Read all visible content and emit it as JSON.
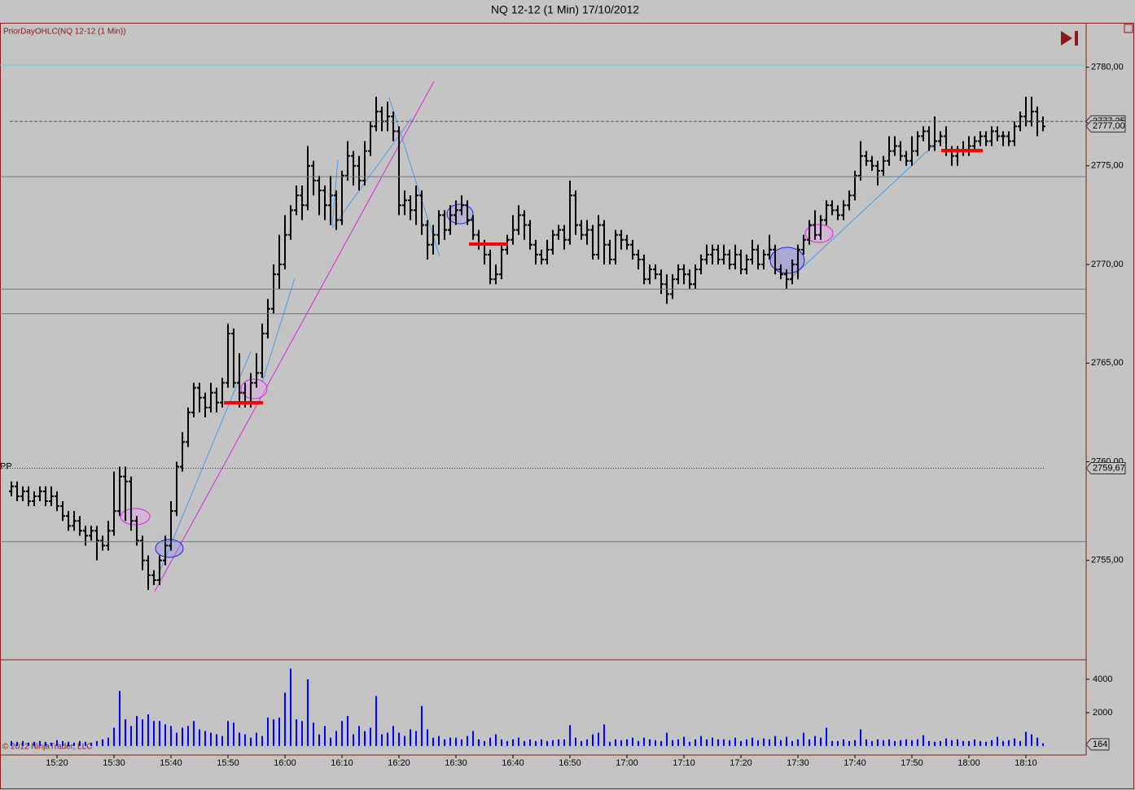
{
  "chart_data": {
    "type": "ohlc",
    "title": "NQ 12-12 (1 Min)  17/10/2012",
    "subtitle": "PriorDayOHLC(NQ 12-12 (1 Min))",
    "footer": "© 2012 NinjaTrader, LLC",
    "color": "#000000",
    "categories": [
      null,
      null,
      null,
      null,
      null,
      null,
      null,
      null,
      "15:20",
      null,
      null,
      null,
      null,
      null,
      null,
      null,
      null,
      null,
      "15:30",
      null,
      null,
      null,
      null,
      null,
      null,
      null,
      null,
      null,
      "15:40",
      null,
      null,
      null,
      null,
      null,
      null,
      null,
      null,
      null,
      "15:50",
      null,
      null,
      null,
      null,
      null,
      null,
      null,
      null,
      null,
      "16:00",
      null,
      null,
      null,
      null,
      null,
      null,
      null,
      null,
      null,
      "16:10",
      null,
      null,
      null,
      null,
      null,
      null,
      null,
      null,
      null,
      "16:20",
      null,
      null,
      null,
      null,
      null,
      null,
      null,
      null,
      null,
      "16:30",
      null,
      null,
      null,
      null,
      null,
      null,
      null,
      null,
      null,
      "16:40",
      null,
      null,
      null,
      null,
      null,
      null,
      null,
      null,
      null,
      "16:50",
      null,
      null,
      null,
      null,
      null,
      null,
      null,
      null,
      null,
      "17:00",
      null,
      null,
      null,
      null,
      null,
      null,
      null,
      null,
      null,
      "17:10",
      null,
      null,
      null,
      null,
      null,
      null,
      null,
      null,
      null,
      "17:20",
      null,
      null,
      null,
      null,
      null,
      null,
      null,
      null,
      null,
      "17:30",
      null,
      null,
      null,
      null,
      null,
      null,
      null,
      null,
      null,
      "17:40",
      null,
      null,
      null,
      null,
      null,
      null,
      null,
      null,
      null,
      "17:50",
      null,
      null,
      null,
      null,
      null,
      null,
      null,
      null,
      null,
      "18:00",
      null,
      null,
      null,
      null,
      null,
      null,
      null,
      null,
      null,
      "18:10",
      null,
      null,
      null
    ],
    "open": [
      2758.5,
      2758.75,
      2758.25,
      2758.5,
      2758.0,
      2758.25,
      2758.5,
      2758.0,
      2758.25,
      2757.75,
      2757.25,
      2756.75,
      2757.0,
      2756.5,
      2756.25,
      2756.5,
      2756.0,
      2755.75,
      2756.5,
      2757.5,
      2759.25,
      2759.0,
      2757.0,
      2756.0,
      2755.0,
      2754.25,
      2754.0,
      2755.0,
      2755.75,
      2757.5,
      2759.75,
      2761.0,
      2762.5,
      2763.75,
      2763.25,
      2762.75,
      2763.5,
      2763.0,
      2764.0,
      2766.5,
      2764.0,
      2763.5,
      2763.0,
      2764.0,
      2764.5,
      2766.5,
      2767.75,
      2769.5,
      2770.0,
      2771.5,
      2772.75,
      2773.5,
      2773.0,
      2775.0,
      2774.25,
      2773.75,
      2773.0,
      2773.5,
      2772.25,
      2774.5,
      2775.5,
      2775.0,
      2774.25,
      2775.75,
      2777.0,
      2777.75,
      2777.25,
      2777.5,
      2776.75,
      2773.0,
      2773.25,
      2772.75,
      2773.5,
      2772.0,
      2771.0,
      2771.5,
      2772.5,
      2771.75,
      2772.5,
      2772.75,
      2773.0,
      2772.25,
      2771.5,
      2771.0,
      2770.5,
      2769.25,
      2769.5,
      2770.75,
      2771.25,
      2771.75,
      2772.5,
      2772.0,
      2771.0,
      2770.5,
      2770.25,
      2770.75,
      2771.5,
      2771.75,
      2771.25,
      2773.5,
      2772.0,
      2771.5,
      2771.75,
      2770.5,
      2772.0,
      2771.0,
      2770.25,
      2771.5,
      2771.25,
      2771.0,
      2770.5,
      2770.25,
      2769.25,
      2769.75,
      2769.5,
      2769.0,
      2768.5,
      2769.25,
      2769.75,
      2769.5,
      2769.0,
      2769.75,
      2770.25,
      2770.5,
      2770.75,
      2770.25,
      2770.5,
      2770.0,
      2770.5,
      2769.75,
      2770.25,
      2770.75,
      2770.0,
      2770.5,
      2770.75,
      2769.75,
      2769.5,
      2769.25,
      2770.0,
      2770.75,
      2771.25,
      2772.0,
      2771.5,
      2772.25,
      2773.0,
      2772.75,
      2772.5,
      2773.0,
      2773.5,
      2774.5,
      2775.5,
      2775.25,
      2775.0,
      2774.75,
      2775.25,
      2775.75,
      2776.0,
      2775.5,
      2775.25,
      2775.75,
      2776.5,
      2776.75,
      2776.0,
      2776.25,
      2776.5,
      2775.75,
      2775.5,
      2775.75,
      2775.75,
      2776.0,
      2776.25,
      2776.5,
      2776.25,
      2776.75,
      2776.5,
      2776.5,
      2776.25,
      2777.0,
      2777.5,
      2777.25,
      2777.75,
      2777.25
    ],
    "high": [
      2759.0,
      2759.0,
      2758.75,
      2758.75,
      2758.5,
      2758.75,
      2758.75,
      2758.75,
      2758.5,
      2758.0,
      2757.5,
      2757.5,
      2757.25,
      2756.75,
      2756.75,
      2756.75,
      2756.25,
      2757.0,
      2759.5,
      2759.75,
      2759.75,
      2759.25,
      2757.25,
      2756.25,
      2755.25,
      2754.5,
      2755.25,
      2756.25,
      2758.0,
      2760.0,
      2761.5,
      2762.75,
      2764.0,
      2764.0,
      2763.5,
      2764.0,
      2763.75,
      2764.25,
      2767.0,
      2766.75,
      2765.5,
      2764.0,
      2764.5,
      2765.5,
      2767.0,
      2768.25,
      2770.0,
      2771.5,
      2772.5,
      2773.0,
      2774.0,
      2774.0,
      2776.0,
      2775.25,
      2774.5,
      2774.0,
      2774.5,
      2773.75,
      2774.75,
      2776.25,
      2775.75,
      2775.5,
      2776.25,
      2777.25,
      2778.5,
      2778.0,
      2778.25,
      2777.75,
      2777.0,
      2773.75,
      2773.5,
      2774.0,
      2773.75,
      2772.25,
      2772.0,
      2772.75,
      2772.75,
      2773.0,
      2773.25,
      2773.5,
      2773.25,
      2772.5,
      2771.75,
      2771.25,
      2770.75,
      2770.0,
      2771.0,
      2771.5,
      2772.5,
      2773.0,
      2772.75,
      2772.25,
      2771.25,
      2770.75,
      2771.25,
      2771.75,
      2772.0,
      2772.0,
      2774.25,
      2773.75,
      2772.25,
      2772.25,
      2772.0,
      2772.5,
      2772.25,
      2771.25,
      2771.75,
      2771.75,
      2771.5,
      2771.25,
      2770.75,
      2770.5,
      2770.0,
      2770.0,
      2769.75,
      2769.5,
      2769.5,
      2770.0,
      2770.0,
      2769.75,
      2770.0,
      2770.5,
      2771.0,
      2771.0,
      2771.0,
      2771.0,
      2770.75,
      2771.0,
      2770.75,
      2770.5,
      2771.25,
      2771.0,
      2770.75,
      2771.5,
      2771.0,
      2770.0,
      2769.75,
      2770.25,
      2771.0,
      2771.5,
      2772.25,
      2772.75,
      2772.5,
      2773.25,
      2773.25,
      2773.0,
      2773.25,
      2773.75,
      2774.75,
      2776.25,
      2775.75,
      2775.5,
      2775.25,
      2775.5,
      2776.5,
      2776.5,
      2776.25,
      2775.75,
      2776.5,
      2776.75,
      2777.0,
      2777.0,
      2777.5,
      2776.75,
      2777.0,
      2776.0,
      2776.0,
      2776.25,
      2776.5,
      2776.5,
      2776.75,
      2776.75,
      2777.0,
      2777.0,
      2776.75,
      2776.75,
      2777.25,
      2777.75,
      2778.5,
      2778.5,
      2778.0,
      2777.5
    ],
    "low": [
      2758.25,
      2758.0,
      2758.0,
      2757.75,
      2757.75,
      2758.0,
      2757.75,
      2757.75,
      2757.5,
      2757.0,
      2756.5,
      2756.5,
      2756.25,
      2755.75,
      2756.0,
      2755.0,
      2755.5,
      2755.5,
      2756.25,
      2757.25,
      2757.0,
      2756.5,
      2755.75,
      2754.5,
      2753.5,
      2753.75,
      2753.75,
      2754.75,
      2755.5,
      2757.25,
      2759.5,
      2760.75,
      2762.25,
      2762.5,
      2762.25,
      2762.5,
      2762.5,
      2762.75,
      2763.75,
      2763.75,
      2762.75,
      2762.75,
      2762.75,
      2763.75,
      2764.25,
      2766.25,
      2767.5,
      2768.75,
      2769.75,
      2771.25,
      2772.5,
      2772.25,
      2772.75,
      2773.5,
      2772.5,
      2772.25,
      2772.0,
      2771.75,
      2772.0,
      2774.25,
      2774.0,
      2773.75,
      2774.0,
      2775.5,
      2776.75,
      2776.75,
      2776.75,
      2776.25,
      2772.5,
      2772.5,
      2772.25,
      2772.0,
      2771.5,
      2770.25,
      2770.5,
      2771.0,
      2771.25,
      2771.5,
      2772.0,
      2772.5,
      2772.0,
      2771.25,
      2770.75,
      2770.0,
      2769.0,
      2769.0,
      2769.25,
      2770.5,
      2771.0,
      2771.5,
      2771.25,
      2770.75,
      2770.0,
      2770.0,
      2770.0,
      2770.5,
      2771.25,
      2770.75,
      2771.0,
      2771.5,
      2771.25,
      2771.0,
      2770.25,
      2770.25,
      2770.0,
      2770.0,
      2770.0,
      2770.75,
      2770.75,
      2770.25,
      2769.75,
      2769.0,
      2769.0,
      2769.25,
      2768.5,
      2768.0,
      2768.25,
      2769.0,
      2769.0,
      2768.75,
      2768.75,
      2769.5,
      2770.0,
      2770.0,
      2770.0,
      2770.0,
      2769.75,
      2769.75,
      2769.5,
      2769.5,
      2770.0,
      2769.75,
      2769.75,
      2770.25,
      2769.5,
      2769.25,
      2768.75,
      2769.0,
      2769.25,
      2770.5,
      2771.0,
      2771.25,
      2771.25,
      2772.0,
      2772.5,
      2772.25,
      2772.25,
      2772.75,
      2773.25,
      2774.25,
      2775.0,
      2774.75,
      2774.0,
      2774.5,
      2775.0,
      2775.5,
      2775.25,
      2775.0,
      2775.0,
      2775.5,
      2776.25,
      2775.75,
      2775.75,
      2776.0,
      2775.5,
      2775.0,
      2775.0,
      2775.5,
      2775.5,
      2775.75,
      2776.0,
      2776.0,
      2776.0,
      2776.25,
      2776.0,
      2776.0,
      2776.0,
      2776.75,
      2777.0,
      2777.0,
      2776.5,
      2776.75
    ],
    "close": [
      2758.75,
      2758.25,
      2758.5,
      2758.0,
      2758.25,
      2758.5,
      2758.0,
      2758.25,
      2757.75,
      2757.25,
      2756.75,
      2757.0,
      2756.5,
      2756.25,
      2756.5,
      2756.0,
      2755.75,
      2756.5,
      2757.5,
      2759.25,
      2759.0,
      2757.0,
      2756.0,
      2755.0,
      2754.25,
      2754.0,
      2755.0,
      2755.75,
      2757.5,
      2759.75,
      2761.0,
      2762.5,
      2763.75,
      2763.25,
      2762.75,
      2763.5,
      2763.0,
      2764.0,
      2766.5,
      2764.0,
      2763.5,
      2763.0,
      2764.0,
      2764.5,
      2766.5,
      2767.75,
      2769.5,
      2770.0,
      2771.5,
      2772.75,
      2773.5,
      2773.0,
      2775.0,
      2774.25,
      2773.75,
      2773.0,
      2773.5,
      2772.25,
      2774.5,
      2775.5,
      2775.0,
      2774.25,
      2775.75,
      2777.0,
      2777.75,
      2777.25,
      2777.5,
      2776.75,
      2773.0,
      2773.25,
      2772.75,
      2773.5,
      2772.0,
      2771.0,
      2771.5,
      2772.5,
      2771.75,
      2772.5,
      2772.75,
      2773.0,
      2772.25,
      2771.5,
      2771.0,
      2770.5,
      2769.25,
      2769.5,
      2770.75,
      2771.25,
      2771.75,
      2772.5,
      2772.0,
      2771.0,
      2770.5,
      2770.25,
      2770.75,
      2771.5,
      2771.75,
      2771.25,
      2773.5,
      2772.0,
      2771.5,
      2771.75,
      2770.5,
      2772.0,
      2771.0,
      2770.25,
      2771.5,
      2771.25,
      2771.0,
      2770.5,
      2770.25,
      2769.25,
      2769.75,
      2769.5,
      2769.0,
      2768.5,
      2769.25,
      2769.75,
      2769.5,
      2769.0,
      2769.75,
      2770.25,
      2770.5,
      2770.75,
      2770.25,
      2770.5,
      2770.0,
      2770.5,
      2769.75,
      2770.25,
      2770.75,
      2770.0,
      2770.5,
      2770.75,
      2769.75,
      2769.5,
      2769.25,
      2770.0,
      2770.75,
      2771.25,
      2772.0,
      2771.5,
      2772.25,
      2773.0,
      2772.75,
      2772.5,
      2773.0,
      2773.5,
      2774.5,
      2775.5,
      2775.25,
      2775.0,
      2774.75,
      2775.25,
      2775.75,
      2776.0,
      2775.5,
      2775.25,
      2775.75,
      2776.5,
      2776.75,
      2776.0,
      2776.25,
      2776.5,
      2775.75,
      2775.5,
      2775.75,
      2775.75,
      2776.0,
      2776.25,
      2776.5,
      2776.25,
      2776.75,
      2776.5,
      2776.5,
      2776.25,
      2777.0,
      2777.5,
      2777.25,
      2777.75,
      2777.25,
      2777.0
    ],
    "ylim": [
      2750,
      2782.25
    ],
    "yticks": [
      {
        "value": 2755,
        "label": "2755,00"
      },
      {
        "value": 2760,
        "label": "2760,00"
      },
      {
        "value": 2765,
        "label": "2765,00"
      },
      {
        "value": 2770,
        "label": "2770,00"
      },
      {
        "value": 2775,
        "label": "2775,00"
      },
      {
        "value": 2780,
        "label": "2780,00"
      }
    ],
    "grid": false,
    "levels": [
      {
        "value": 2780.1,
        "color": "#5fcfcf"
      },
      {
        "value": 2774.45,
        "color": "#6b7893"
      },
      {
        "value": 2768.75,
        "color": "#6b7893"
      },
      {
        "value": 2767.5,
        "color": "#6b7893"
      },
      {
        "value": 2755.95,
        "color": "#6b7893"
      }
    ],
    "price_markers": [
      {
        "value": 2777.25,
        "label": "2777,25",
        "color": "#2d7a2d"
      },
      {
        "value": 2777,
        "label": "2777,00",
        "color": "#000000"
      },
      {
        "value": 2759.67,
        "label": "2759,67",
        "name": "PP",
        "color": "#1a1aff"
      }
    ],
    "volume": {
      "color": "#0000ff",
      "values": [
        300,
        250,
        300,
        200,
        250,
        300,
        250,
        200,
        350,
        300,
        250,
        200,
        300,
        250,
        200,
        300,
        400,
        500,
        1100,
        3300,
        1600,
        1200,
        1800,
        1600,
        1900,
        1500,
        1500,
        1300,
        1200,
        800,
        1100,
        1200,
        1500,
        1000,
        900,
        800,
        700,
        600,
        1500,
        1400,
        800,
        700,
        500,
        800,
        600,
        1700,
        1600,
        1700,
        3200,
        4650,
        1600,
        1500,
        4000,
        1400,
        700,
        1200,
        500,
        900,
        1500,
        1800,
        700,
        1200,
        900,
        1100,
        3000,
        700,
        800,
        1200,
        800,
        600,
        1000,
        900,
        2400,
        1000,
        500,
        600,
        400,
        500,
        500,
        400,
        600,
        900,
        400,
        300,
        500,
        700,
        400,
        300,
        400,
        500,
        300,
        400,
        300,
        400,
        300,
        350,
        400,
        400,
        1250,
        500,
        300,
        400,
        700,
        800,
        1300,
        250,
        400,
        350,
        400,
        500,
        300,
        500,
        400,
        350,
        300,
        800,
        350,
        400,
        550,
        250,
        400,
        600,
        400,
        500,
        400,
        400,
        350,
        500,
        300,
        400,
        500,
        350,
        450,
        400,
        600,
        350,
        550,
        300,
        400,
        800,
        400,
        600,
        500,
        1100,
        300,
        300,
        400,
        300,
        350,
        1000,
        400,
        300,
        400,
        350,
        400,
        300,
        350,
        400,
        350,
        400,
        650,
        300,
        250,
        300,
        450,
        350,
        400,
        300,
        300,
        400,
        300,
        250,
        350,
        550,
        300,
        350,
        450,
        300,
        850,
        700,
        500,
        164
      ],
      "ylim": [
        -540,
        5120
      ],
      "yticks": [
        2000,
        4000
      ]
    }
  }
}
